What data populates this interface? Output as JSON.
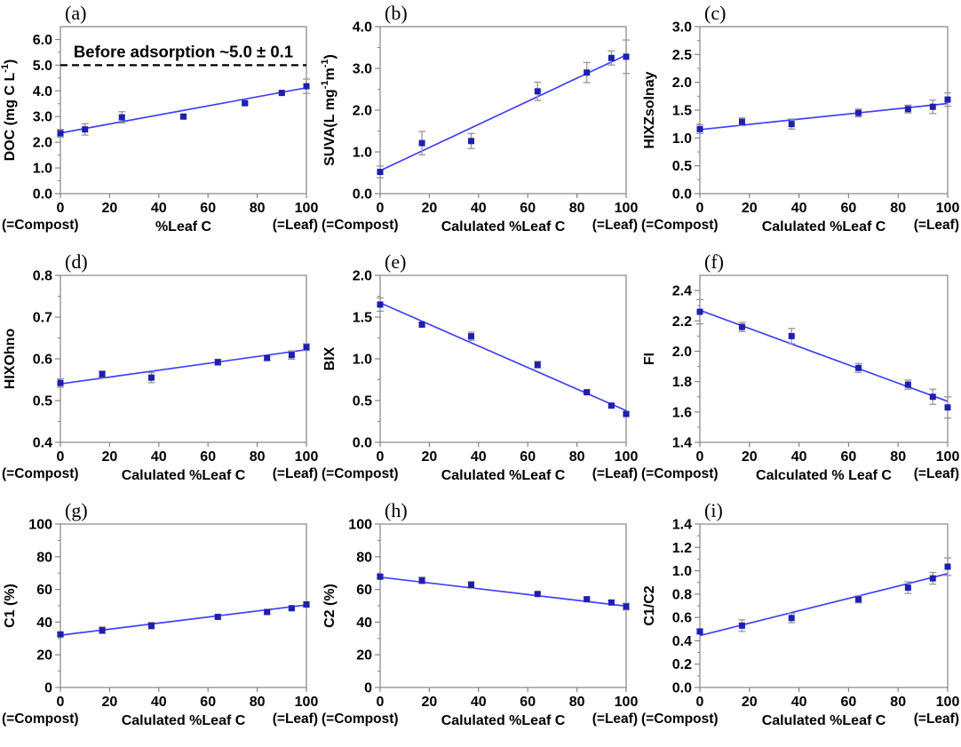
{
  "figure": {
    "background": "#ffffff",
    "colors": {
      "axis": "#848484",
      "tick_text": "#000000",
      "point": "#1f1fae",
      "trend_line": "#4040ff",
      "error_bar": "#969696",
      "annotation_line": "#000000",
      "annotation_text": "#000000"
    },
    "corner_left": "(=Compost)",
    "corner_right": "(=Leaf)",
    "xlim": [
      0,
      100
    ],
    "xticks": [
      "0",
      "20",
      "40",
      "60",
      "80",
      "100"
    ],
    "xstep": 20
  },
  "chart_data": [
    {
      "type": "scatter",
      "letter": "(a)",
      "xlabel": "%Leaf C",
      "ylabel_segments": [
        {
          "text": "DOC (mg C L"
        },
        {
          "text": "-1",
          "sup": true
        },
        {
          "text": ")"
        }
      ],
      "ylim": [
        0,
        6.5
      ],
      "ystep": 1,
      "yticks": [
        "0.0",
        "1.0",
        "2.0",
        "3.0",
        "4.0",
        "5.0",
        "6.0"
      ],
      "x": [
        0,
        10,
        25,
        50,
        75,
        90,
        100
      ],
      "y": [
        2.35,
        2.5,
        2.97,
        3.0,
        3.52,
        3.92,
        4.18
      ],
      "yerr": [
        0.15,
        0.22,
        0.22,
        0.08,
        0.04,
        0.04,
        0.28
      ],
      "trend": [
        2.36,
        4.12
      ],
      "annotation": {
        "text": "Before adsorption ~5.0 ± 0.1",
        "line_y": 5.0
      }
    },
    {
      "type": "scatter",
      "letter": "(b)",
      "xlabel": "Calulated %Leaf C",
      "ylabel_segments": [
        {
          "text": "SUVA(L mg"
        },
        {
          "text": "-1",
          "sup": true
        },
        {
          "text": "m"
        },
        {
          "text": "-1",
          "sup": true
        },
        {
          "text": ")"
        }
      ],
      "ylim": [
        0,
        4
      ],
      "ystep": 1,
      "yticks": [
        "0.0",
        "1.0",
        "2.0",
        "3.0",
        "4.0"
      ],
      "x": [
        0,
        17,
        37,
        64,
        84,
        94,
        100
      ],
      "y": [
        0.52,
        1.21,
        1.26,
        2.45,
        2.9,
        3.25,
        3.28
      ],
      "yerr": [
        0.14,
        0.28,
        0.18,
        0.22,
        0.24,
        0.17,
        0.4
      ],
      "trend": [
        0.55,
        3.32
      ]
    },
    {
      "type": "scatter",
      "letter": "(c)",
      "xlabel": "Calulated %Leaf C",
      "ylabel_segments": [
        {
          "text": "HIXZsolnay"
        }
      ],
      "ylim": [
        0,
        3
      ],
      "ystep": 0.5,
      "yticks": [
        "0.0",
        "0.5",
        "1.0",
        "1.5",
        "2.0",
        "2.5",
        "3.0"
      ],
      "x": [
        0,
        17,
        37,
        64,
        84,
        94,
        100
      ],
      "y": [
        1.16,
        1.29,
        1.25,
        1.45,
        1.52,
        1.56,
        1.69
      ],
      "yerr": [
        0.08,
        0.07,
        0.09,
        0.07,
        0.07,
        0.12,
        0.12
      ],
      "trend": [
        1.15,
        1.62
      ]
    },
    {
      "type": "scatter",
      "letter": "(d)",
      "xlabel": "Calulated %Leaf C",
      "ylabel_segments": [
        {
          "text": "HIXOhno"
        }
      ],
      "ylim": [
        0.4,
        0.8
      ],
      "ystep": 0.1,
      "yticks": [
        "0.4",
        "0.5",
        "0.6",
        "0.7",
        "0.8"
      ],
      "x": [
        0,
        17,
        37,
        64,
        84,
        94,
        100
      ],
      "y": [
        0.542,
        0.563,
        0.555,
        0.592,
        0.602,
        0.609,
        0.628
      ],
      "yerr": [
        0.01,
        0.008,
        0.012,
        0.007,
        0.006,
        0.01,
        0.008
      ],
      "trend": [
        0.54,
        0.622
      ]
    },
    {
      "type": "scatter",
      "letter": "(e)",
      "xlabel": "Calulated %Leaf C",
      "ylabel_segments": [
        {
          "text": "BIX"
        }
      ],
      "ylim": [
        0,
        2
      ],
      "ystep": 0.5,
      "yticks": [
        "0.0",
        "0.5",
        "1.0",
        "1.5",
        "2.0"
      ],
      "x": [
        0,
        17,
        37,
        64,
        84,
        94,
        100
      ],
      "y": [
        1.65,
        1.41,
        1.27,
        0.93,
        0.6,
        0.44,
        0.34
      ],
      "yerr": [
        0.08,
        0.02,
        0.05,
        0.04,
        0.02,
        0.02,
        0.02
      ],
      "trend": [
        1.67,
        0.38
      ]
    },
    {
      "type": "scatter",
      "letter": "(f)",
      "xlabel": "Calculated % Leaf C",
      "ylabel_segments": [
        {
          "text": "FI"
        }
      ],
      "ylim": [
        1.4,
        2.5
      ],
      "ystep": 0.2,
      "yticks": [
        "1.4",
        "1.6",
        "1.8",
        "2.0",
        "2.2",
        "2.4"
      ],
      "x": [
        0,
        17,
        37,
        64,
        84,
        94,
        100
      ],
      "y": [
        2.26,
        2.16,
        2.1,
        1.89,
        1.78,
        1.7,
        1.63
      ],
      "yerr": [
        0.08,
        0.03,
        0.05,
        0.03,
        0.03,
        0.05,
        0.07
      ],
      "trend": [
        2.27,
        1.67
      ]
    },
    {
      "type": "scatter",
      "letter": "(g)",
      "xlabel": "Calulated %Leaf C",
      "ylabel_segments": [
        {
          "text": "C1 (%)"
        }
      ],
      "ylim": [
        0,
        100
      ],
      "ystep": 20,
      "yticks": [
        "0",
        "20",
        "40",
        "60",
        "80",
        "100"
      ],
      "x": [
        0,
        17,
        37,
        64,
        84,
        94,
        100
      ],
      "y": [
        32.5,
        35.0,
        37.8,
        43.2,
        46.2,
        48.5,
        50.8
      ],
      "yerr": [
        1.0,
        2.0,
        2.0,
        1.0,
        1.0,
        1.0,
        1.5
      ],
      "trend": [
        32.0,
        50.5
      ]
    },
    {
      "type": "scatter",
      "letter": "(h)",
      "xlabel": "Calulated %Leaf C",
      "ylabel_segments": [
        {
          "text": "C2 (%)"
        }
      ],
      "ylim": [
        0,
        100
      ],
      "ystep": 20,
      "yticks": [
        "0",
        "20",
        "40",
        "60",
        "80",
        "100"
      ],
      "x": [
        0,
        17,
        37,
        64,
        84,
        94,
        100
      ],
      "y": [
        67.8,
        65.5,
        62.8,
        57.2,
        54.0,
        52.0,
        49.5
      ],
      "yerr": [
        1.0,
        2.0,
        2.0,
        1.0,
        1.0,
        1.0,
        2.0
      ],
      "trend": [
        67.5,
        49.8
      ]
    },
    {
      "type": "scatter",
      "letter": "(i)",
      "xlabel": "Calulated %Leaf C",
      "ylabel_segments": [
        {
          "text": "C1/C2"
        }
      ],
      "ylim": [
        0,
        1.4
      ],
      "ystep": 0.2,
      "yticks": [
        "0.0",
        "0.2",
        "0.4",
        "0.6",
        "0.8",
        "1.0",
        "1.2",
        "1.4"
      ],
      "x": [
        0,
        17,
        37,
        64,
        84,
        94,
        100
      ],
      "y": [
        0.48,
        0.53,
        0.595,
        0.755,
        0.855,
        0.935,
        1.035
      ],
      "yerr": [
        0.02,
        0.05,
        0.04,
        0.03,
        0.05,
        0.05,
        0.075
      ],
      "trend": [
        0.445,
        0.975
      ]
    }
  ]
}
